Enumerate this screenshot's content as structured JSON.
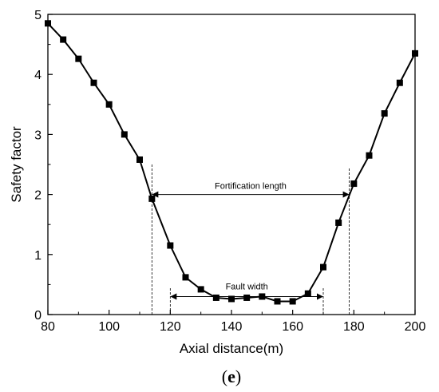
{
  "chart_data": {
    "type": "line",
    "title": "",
    "xlabel": "Axial distance(m)",
    "ylabel": "Safety factor",
    "xlim": [
      80,
      200
    ],
    "ylim": [
      0,
      5
    ],
    "xticks": [
      80,
      100,
      120,
      140,
      160,
      180,
      200
    ],
    "yticks": [
      0,
      1,
      2,
      3,
      4,
      5
    ],
    "grid": false,
    "series": [
      {
        "marker": "square",
        "color": "#000000",
        "x": [
          80,
          85,
          90,
          95,
          100,
          105,
          110,
          114,
          120,
          125,
          130,
          135,
          140,
          145,
          150,
          155,
          160,
          165,
          170,
          175,
          180,
          185,
          190,
          195,
          200
        ],
        "y": [
          4.85,
          4.58,
          4.26,
          3.86,
          3.5,
          3.0,
          2.58,
          1.93,
          1.15,
          0.62,
          0.42,
          0.28,
          0.26,
          0.28,
          0.3,
          0.22,
          0.22,
          0.35,
          0.79,
          1.53,
          2.18,
          2.65,
          3.35,
          3.86,
          4.35
        ]
      }
    ],
    "annotations": [
      {
        "label": "Fortification length",
        "x_start": 114,
        "x_end": 178.5,
        "y": 2.0
      },
      {
        "label": "Fault width",
        "x_start": 120,
        "x_end": 170,
        "y": 0.3
      }
    ],
    "panel_label": {
      "open": "(",
      "letter": "e",
      "close": ")"
    }
  }
}
